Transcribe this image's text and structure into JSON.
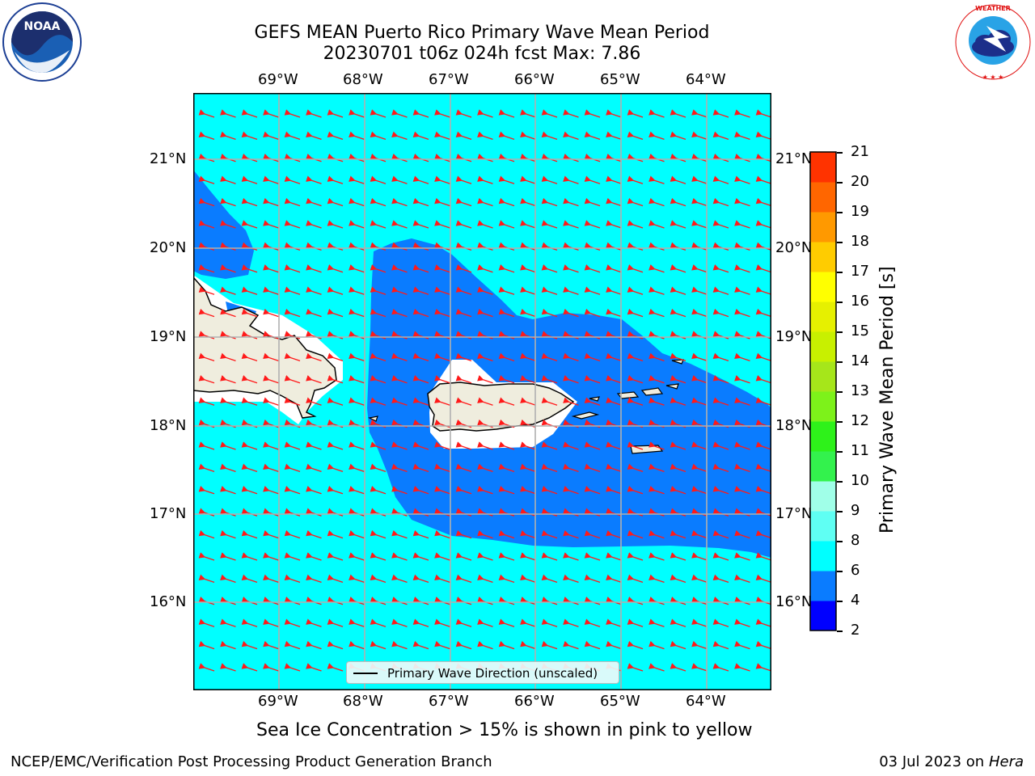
{
  "header": {
    "title_line1": "GEFS MEAN Puerto Rico Primary Wave Mean Period",
    "title_line2": "20230701 t06z 024h fcst   Max: 7.86"
  },
  "logos": {
    "left": {
      "text": "NOAA",
      "ring_text": "NATIONAL OCEANIC AND ATMOSPHERIC ADMINISTRATION · U.S. DEPARTMENT OF COMMERCE",
      "icon": "noaa-logo"
    },
    "right": {
      "ring_text": "NATIONAL WEATHER SERVICE",
      "icon": "nws-logo"
    }
  },
  "map": {
    "lon_ticks": [
      "69°W",
      "68°W",
      "67°W",
      "66°W",
      "65°W",
      "64°W"
    ],
    "lat_ticks": [
      "21°N",
      "20°N",
      "19°N",
      "18°N",
      "17°N",
      "16°N"
    ],
    "colors": {
      "ocean_light": "#00ffff",
      "ocean_blue": "#0a7cff",
      "land": "#efedde",
      "arrow": "#ff1a1a",
      "grid": "#b0b0b0"
    },
    "legend_label": "Primary Wave Direction (unscaled)"
  },
  "colorbar": {
    "label": "Primary Wave Mean Period [s]",
    "ticks": [
      "2",
      "4",
      "6",
      "8",
      "9",
      "10",
      "11",
      "12",
      "13",
      "14",
      "15",
      "16",
      "17",
      "18",
      "19",
      "20",
      "21"
    ],
    "colors": [
      "#0000ff",
      "#0a7cff",
      "#00ffff",
      "#5ffff3",
      "#a0ffe8",
      "#33f24d",
      "#2ef21a",
      "#7df21a",
      "#a6e61a",
      "#c8f000",
      "#e6f000",
      "#ffff00",
      "#ffcc00",
      "#ff9900",
      "#ff6600",
      "#ff3300",
      "#ff0000"
    ]
  },
  "notes": {
    "sea_ice": "Sea Ice Concentration > 15% is shown in pink to yellow"
  },
  "footer": {
    "left": "NCEP/EMC/Verification Post Processing Product Generation Branch",
    "right_prefix": "03 Jul 2023 on ",
    "right_machine": "Hera"
  }
}
